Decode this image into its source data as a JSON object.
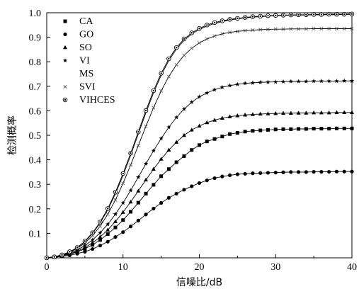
{
  "chart_data": {
    "type": "line",
    "xlabel": "信噪比/dB",
    "ylabel": "检测概率",
    "xlim": [
      0,
      40
    ],
    "ylim": [
      0,
      1.0
    ],
    "x_ticks": [
      "0",
      "10",
      "20",
      "30",
      "40"
    ],
    "y_ticks": [
      "0.1",
      "0.2",
      "0.3",
      "0.4",
      "0.5",
      "0.6",
      "0.7",
      "0.8",
      "0.9",
      "1.0"
    ],
    "grid": false,
    "legend_position": "top-left",
    "x": [
      0,
      1,
      2,
      3,
      4,
      5,
      6,
      7,
      8,
      9,
      10,
      11,
      12,
      13,
      14,
      15,
      16,
      17,
      18,
      19,
      20,
      21,
      22,
      23,
      24,
      25,
      26,
      27,
      28,
      29,
      30,
      31,
      32,
      33,
      34,
      35,
      36,
      37,
      38,
      39,
      40
    ],
    "series": [
      {
        "name": "CA",
        "marker": "square",
        "values": [
          0.0,
          0.003,
          0.008,
          0.014,
          0.024,
          0.037,
          0.053,
          0.073,
          0.097,
          0.124,
          0.154,
          0.188,
          0.225,
          0.262,
          0.298,
          0.333,
          0.362,
          0.39,
          0.415,
          0.44,
          0.46,
          0.475,
          0.485,
          0.495,
          0.505,
          0.51,
          0.515,
          0.518,
          0.52,
          0.522,
          0.524,
          0.525,
          0.525,
          0.526,
          0.526,
          0.527,
          0.527,
          0.527,
          0.528,
          0.528,
          0.528
        ]
      },
      {
        "name": "GO",
        "marker": "circle",
        "values": [
          0.0,
          0.002,
          0.006,
          0.01,
          0.017,
          0.025,
          0.036,
          0.05,
          0.066,
          0.085,
          0.105,
          0.128,
          0.152,
          0.177,
          0.201,
          0.224,
          0.245,
          0.262,
          0.278,
          0.292,
          0.305,
          0.316,
          0.325,
          0.332,
          0.337,
          0.341,
          0.343,
          0.345,
          0.346,
          0.347,
          0.348,
          0.349,
          0.35,
          0.35,
          0.35,
          0.351,
          0.351,
          0.351,
          0.352,
          0.352,
          0.352
        ]
      },
      {
        "name": "SO",
        "marker": "triangle",
        "values": [
          0.0,
          0.003,
          0.009,
          0.016,
          0.027,
          0.042,
          0.061,
          0.085,
          0.114,
          0.148,
          0.186,
          0.228,
          0.273,
          0.318,
          0.362,
          0.403,
          0.44,
          0.472,
          0.5,
          0.522,
          0.538,
          0.552,
          0.562,
          0.57,
          0.576,
          0.58,
          0.583,
          0.585,
          0.587,
          0.588,
          0.589,
          0.59,
          0.59,
          0.591,
          0.591,
          0.592,
          0.592,
          0.592,
          0.593,
          0.593,
          0.593
        ]
      },
      {
        "name": "VI",
        "marker": "star",
        "values": [
          0.0,
          0.003,
          0.01,
          0.019,
          0.032,
          0.05,
          0.073,
          0.102,
          0.137,
          0.178,
          0.224,
          0.275,
          0.329,
          0.384,
          0.437,
          0.487,
          0.533,
          0.573,
          0.607,
          0.635,
          0.657,
          0.673,
          0.686,
          0.696,
          0.703,
          0.708,
          0.712,
          0.714,
          0.716,
          0.717,
          0.718,
          0.719,
          0.72,
          0.72,
          0.72,
          0.721,
          0.721,
          0.721,
          0.721,
          0.722,
          0.722
        ]
      },
      {
        "name": "MS",
        "marker": "none",
        "values": [
          0.0,
          0.004,
          0.012,
          0.024,
          0.041,
          0.066,
          0.099,
          0.142,
          0.196,
          0.261,
          0.336,
          0.418,
          0.505,
          0.592,
          0.673,
          0.745,
          0.805,
          0.852,
          0.887,
          0.913,
          0.932,
          0.946,
          0.956,
          0.964,
          0.97,
          0.975,
          0.979,
          0.982,
          0.984,
          0.986,
          0.988,
          0.989,
          0.99,
          0.99,
          0.991,
          0.991,
          0.992,
          0.992,
          0.992,
          0.993,
          0.993
        ]
      },
      {
        "name": "SVI",
        "marker": "x",
        "values": [
          0.0,
          0.004,
          0.011,
          0.022,
          0.038,
          0.06,
          0.09,
          0.129,
          0.178,
          0.236,
          0.304,
          0.379,
          0.458,
          0.537,
          0.613,
          0.681,
          0.74,
          0.788,
          0.826,
          0.855,
          0.877,
          0.893,
          0.905,
          0.914,
          0.92,
          0.924,
          0.927,
          0.929,
          0.931,
          0.932,
          0.933,
          0.933,
          0.934,
          0.934,
          0.934,
          0.935,
          0.935,
          0.935,
          0.935,
          0.935,
          0.935
        ]
      },
      {
        "name": "VIHCES",
        "marker": "bullseye",
        "values": [
          0.0,
          0.004,
          0.012,
          0.025,
          0.042,
          0.068,
          0.102,
          0.146,
          0.201,
          0.268,
          0.344,
          0.427,
          0.514,
          0.601,
          0.682,
          0.753,
          0.812,
          0.858,
          0.893,
          0.918,
          0.936,
          0.95,
          0.96,
          0.967,
          0.973,
          0.977,
          0.981,
          0.984,
          0.986,
          0.988,
          0.989,
          0.99,
          0.991,
          0.992,
          0.992,
          0.993,
          0.993,
          0.994,
          0.994,
          0.994,
          0.995
        ]
      }
    ]
  }
}
